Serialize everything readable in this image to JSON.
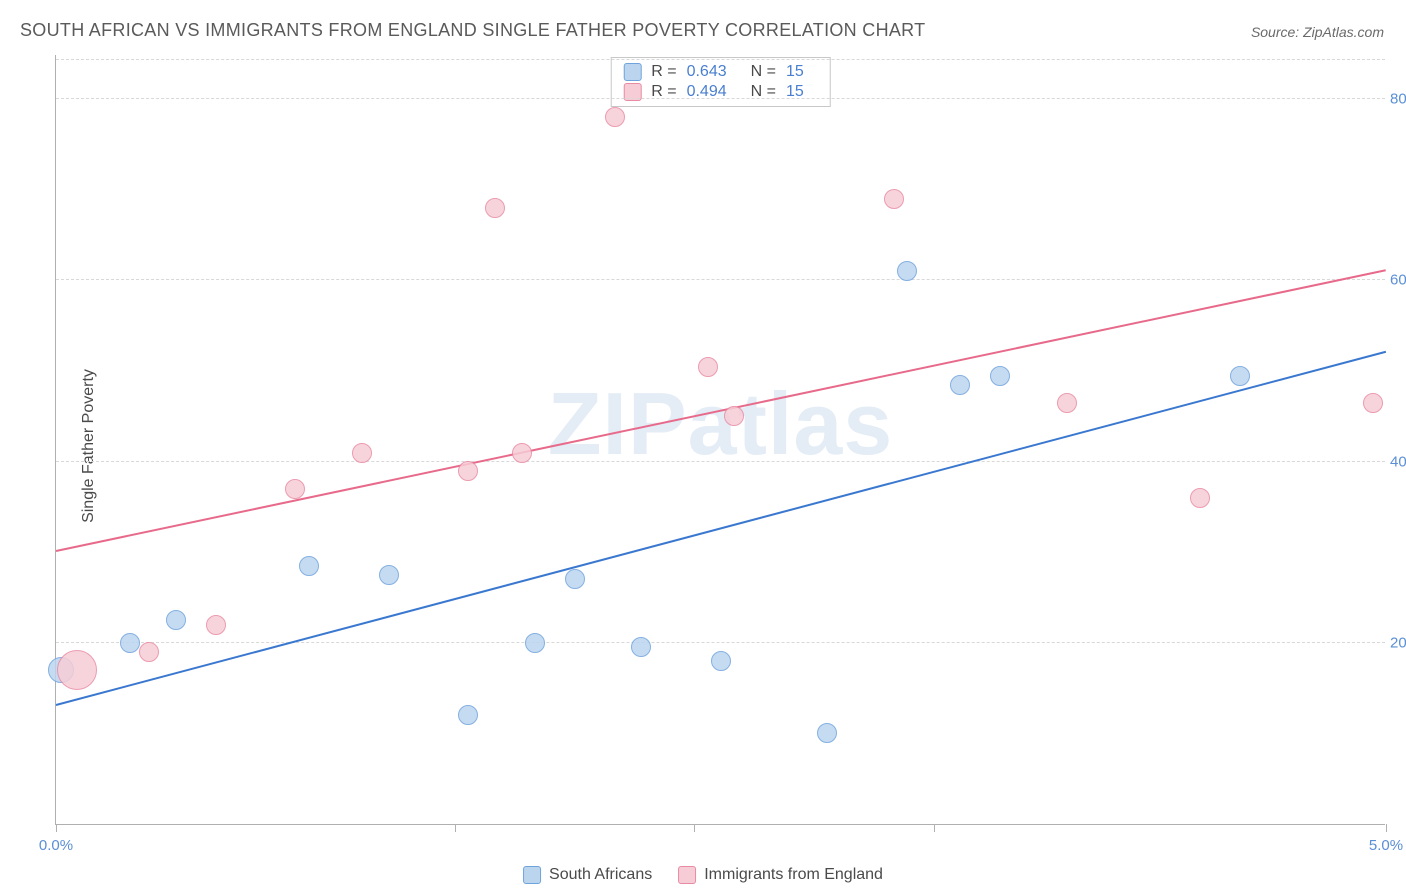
{
  "title": "SOUTH AFRICAN VS IMMIGRANTS FROM ENGLAND SINGLE FATHER POVERTY CORRELATION CHART",
  "source": "Source: ZipAtlas.com",
  "watermark": "ZIPatlas",
  "ylabel": "Single Father Poverty",
  "chart": {
    "type": "scatter",
    "xlim": [
      0,
      5
    ],
    "ylim": [
      0,
      85
    ],
    "xtick_positions": [
      0,
      1.5,
      2.4,
      3.3,
      5
    ],
    "xtick_labels": {
      "0": "0.0%",
      "5": "5.0%"
    },
    "ytick_positions": [
      20,
      40,
      60,
      80
    ],
    "ytick_labels": [
      "20.0%",
      "40.0%",
      "60.0%",
      "80.0%"
    ],
    "grid_color": "#d8d8d8",
    "axis_color": "#b0b0b0",
    "tick_label_color": "#5b8fd6",
    "background_color": "#ffffff",
    "title_fontsize": 18,
    "label_fontsize": 16,
    "tick_fontsize": 15
  },
  "series": [
    {
      "name": "South Africans",
      "fill": "#bcd5ef",
      "stroke": "#6fa3dc",
      "trend_color": "#3a78d0",
      "marker_radius": 10,
      "R": "0.643",
      "N": "15",
      "trend": {
        "x1": 0,
        "y1": 13,
        "x2": 5.0,
        "y2": 52
      },
      "points": [
        {
          "x": 0.02,
          "y": 17,
          "r": 13
        },
        {
          "x": 0.28,
          "y": 20
        },
        {
          "x": 0.45,
          "y": 22.5
        },
        {
          "x": 0.95,
          "y": 28.5
        },
        {
          "x": 1.25,
          "y": 27.5
        },
        {
          "x": 1.55,
          "y": 12
        },
        {
          "x": 1.8,
          "y": 20
        },
        {
          "x": 1.95,
          "y": 27
        },
        {
          "x": 2.2,
          "y": 19.5
        },
        {
          "x": 2.5,
          "y": 18
        },
        {
          "x": 2.9,
          "y": 10
        },
        {
          "x": 3.2,
          "y": 61
        },
        {
          "x": 3.4,
          "y": 48.5
        },
        {
          "x": 3.55,
          "y": 49.5
        },
        {
          "x": 4.45,
          "y": 49.5
        }
      ]
    },
    {
      "name": "Immigrants from England",
      "fill": "#f6cdd6",
      "stroke": "#e98aa3",
      "trend_color": "#e86a8b",
      "marker_radius": 10,
      "R": "0.494",
      "N": "15",
      "trend": {
        "x1": 0,
        "y1": 30,
        "x2": 5.0,
        "y2": 61
      },
      "points": [
        {
          "x": 0.08,
          "y": 17,
          "r": 20
        },
        {
          "x": 0.35,
          "y": 19
        },
        {
          "x": 0.6,
          "y": 22
        },
        {
          "x": 0.9,
          "y": 37
        },
        {
          "x": 1.15,
          "y": 41
        },
        {
          "x": 1.55,
          "y": 39
        },
        {
          "x": 1.75,
          "y": 41
        },
        {
          "x": 1.65,
          "y": 68
        },
        {
          "x": 2.1,
          "y": 78
        },
        {
          "x": 2.45,
          "y": 50.5
        },
        {
          "x": 2.55,
          "y": 45
        },
        {
          "x": 3.15,
          "y": 69
        },
        {
          "x": 3.8,
          "y": 46.5
        },
        {
          "x": 4.3,
          "y": 36
        },
        {
          "x": 4.95,
          "y": 46.5
        }
      ]
    }
  ],
  "legend": {
    "swatch_blue": {
      "fill": "#bcd5ef",
      "stroke": "#6fa3dc"
    },
    "swatch_pink": {
      "fill": "#f6cdd6",
      "stroke": "#e98aa3"
    }
  }
}
